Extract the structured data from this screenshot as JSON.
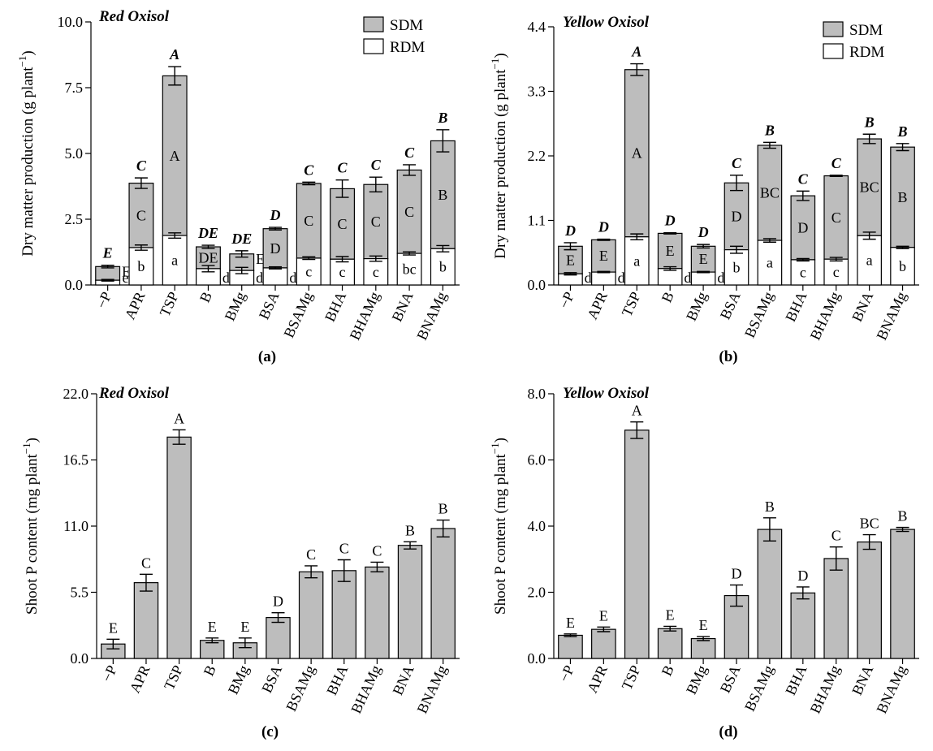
{
  "chart_data": [
    {
      "id": "a",
      "type": "bar",
      "stacked": true,
      "title": "Red Oxisol",
      "panel_label": "(a)",
      "ylabel": "Dry matter production (g plant",
      "ylabel_sup": "−1",
      "ylabel_end": ")",
      "ylim": [
        0,
        10
      ],
      "yticks": [
        "0.0",
        "2.5",
        "5.0",
        "7.5",
        "10.0"
      ],
      "ytick_values": [
        0,
        2.5,
        5,
        7.5,
        10
      ],
      "legend": {
        "position": "top-right",
        "entries": [
          {
            "label": "SDM",
            "color": "#bdbdbd"
          },
          {
            "label": "RDM",
            "color": "#ffffff"
          }
        ]
      },
      "categories": [
        "−P",
        "APR",
        "TSP",
        "B",
        "BMg",
        "BSA",
        "BSAMg",
        "BHA",
        "BHAMg",
        "BNA",
        "BNAMg"
      ],
      "series": [
        {
          "name": "RDM",
          "values": [
            0.18,
            1.42,
            1.88,
            0.62,
            0.55,
            0.65,
            1.02,
            0.98,
            1.0,
            1.2,
            1.38
          ],
          "errors": [
            0.03,
            0.1,
            0.1,
            0.12,
            0.12,
            0.04,
            0.05,
            0.1,
            0.1,
            0.06,
            0.12
          ]
        },
        {
          "name": "SDM",
          "values": [
            0.52,
            2.45,
            6.07,
            0.83,
            0.63,
            1.49,
            2.84,
            2.68,
            2.82,
            3.17,
            4.1
          ],
          "errors": [
            0.05,
            0.2,
            0.35,
            0.06,
            0.12,
            0.05,
            0.05,
            0.33,
            0.28,
            0.2,
            0.42
          ]
        }
      ],
      "total_letters": [
        "E",
        "C",
        "A",
        "DE",
        "DE",
        "D",
        "C",
        "C",
        "C",
        "C",
        "B"
      ],
      "sdm_letters": [
        "E",
        "C",
        "A",
        "DE",
        "E",
        "D",
        "C",
        "C",
        "C",
        "C",
        "B"
      ],
      "rdm_letters": [
        "e",
        "b",
        "a",
        "d",
        "d",
        "d",
        "c",
        "c",
        "c",
        "bc",
        "b"
      ]
    },
    {
      "id": "b",
      "type": "bar",
      "stacked": true,
      "title": "Yellow Oxisol",
      "panel_label": "(b)",
      "ylabel": "Dry matter production (g plant",
      "ylabel_sup": "−1",
      "ylabel_end": ")",
      "ylim": [
        0,
        4.4
      ],
      "yticks": [
        "0.0",
        "1.1",
        "2.2",
        "3.3",
        "4.4"
      ],
      "ytick_values": [
        0,
        1.1,
        2.2,
        3.3,
        4.4
      ],
      "legend": {
        "position": "top-right",
        "entries": [
          {
            "label": "SDM",
            "color": "#bdbdbd"
          },
          {
            "label": "RDM",
            "color": "#ffffff"
          }
        ]
      },
      "categories": [
        "−P",
        "APR",
        "TSP",
        "B",
        "BMg",
        "BSA",
        "BSAMg",
        "BHA",
        "BHAMg",
        "BNA",
        "BNAMg"
      ],
      "series": [
        {
          "name": "RDM",
          "values": [
            0.19,
            0.22,
            0.82,
            0.28,
            0.22,
            0.6,
            0.76,
            0.43,
            0.44,
            0.84,
            0.64
          ],
          "errors": [
            0.02,
            0.01,
            0.05,
            0.03,
            0.01,
            0.06,
            0.03,
            0.02,
            0.03,
            0.06,
            0.02
          ]
        },
        {
          "name": "SDM",
          "values": [
            0.47,
            0.55,
            2.85,
            0.6,
            0.44,
            1.14,
            1.62,
            1.09,
            1.42,
            1.65,
            1.71
          ],
          "errors": [
            0.06,
            0.01,
            0.1,
            0.01,
            0.03,
            0.13,
            0.05,
            0.08,
            0.01,
            0.08,
            0.06
          ]
        }
      ],
      "total_letters": [
        "D",
        "D",
        "A",
        "D",
        "D",
        "C",
        "B",
        "C",
        "C",
        "B",
        "B"
      ],
      "sdm_letters": [
        "E",
        "E",
        "A",
        "E",
        "E",
        "D",
        "BC",
        "D",
        "C",
        "BC",
        "B"
      ],
      "rdm_letters": [
        "d",
        "d",
        "a",
        "d",
        "d",
        "b",
        "a",
        "c",
        "c",
        "a",
        "b"
      ]
    },
    {
      "id": "c",
      "type": "bar",
      "stacked": false,
      "title": "Red Oxisol",
      "panel_label": "(c)",
      "ylabel": "Shoot P content (mg plant",
      "ylabel_sup": "−1",
      "ylabel_end": ")",
      "ylim": [
        0,
        22
      ],
      "yticks": [
        "0.0",
        "5.5",
        "11.0",
        "16.5",
        "22.0"
      ],
      "ytick_values": [
        0,
        5.5,
        11,
        16.5,
        22
      ],
      "categories": [
        "−P",
        "APR",
        "TSP",
        "B",
        "BMg",
        "BSA",
        "BSAMg",
        "BHA",
        "BHAMg",
        "BNA",
        "BNAMg"
      ],
      "values": [
        1.2,
        6.3,
        18.4,
        1.5,
        1.3,
        3.4,
        7.2,
        7.3,
        7.6,
        9.4,
        10.8
      ],
      "errors": [
        0.4,
        0.7,
        0.6,
        0.2,
        0.4,
        0.4,
        0.5,
        0.9,
        0.4,
        0.3,
        0.7
      ],
      "letters": [
        "E",
        "C",
        "A",
        "E",
        "E",
        "D",
        "C",
        "C",
        "C",
        "B",
        "B"
      ]
    },
    {
      "id": "d",
      "type": "bar",
      "stacked": false,
      "title": "Yellow Oxisol",
      "panel_label": "(d)",
      "ylabel": "Shoot P content (mg plant",
      "ylabel_sup": "−1",
      "ylabel_end": ")",
      "ylim": [
        0,
        8
      ],
      "yticks": [
        "0.0",
        "2.0",
        "4.0",
        "6.0",
        "8.0"
      ],
      "ytick_values": [
        0,
        2,
        4,
        6,
        8
      ],
      "categories": [
        "−P",
        "APR",
        "TSP",
        "B",
        "BMg",
        "BSA",
        "BSAMg",
        "BHA",
        "BHAMg",
        "BNA",
        "BNAMg"
      ],
      "values": [
        0.7,
        0.88,
        6.9,
        0.9,
        0.6,
        1.9,
        3.9,
        1.98,
        3.02,
        3.52,
        3.9
      ],
      "errors": [
        0.04,
        0.07,
        0.25,
        0.07,
        0.06,
        0.32,
        0.35,
        0.18,
        0.35,
        0.22,
        0.06
      ],
      "letters": [
        "E",
        "E",
        "A",
        "E",
        "E",
        "D",
        "B",
        "D",
        "C",
        "BC",
        "B"
      ]
    }
  ]
}
